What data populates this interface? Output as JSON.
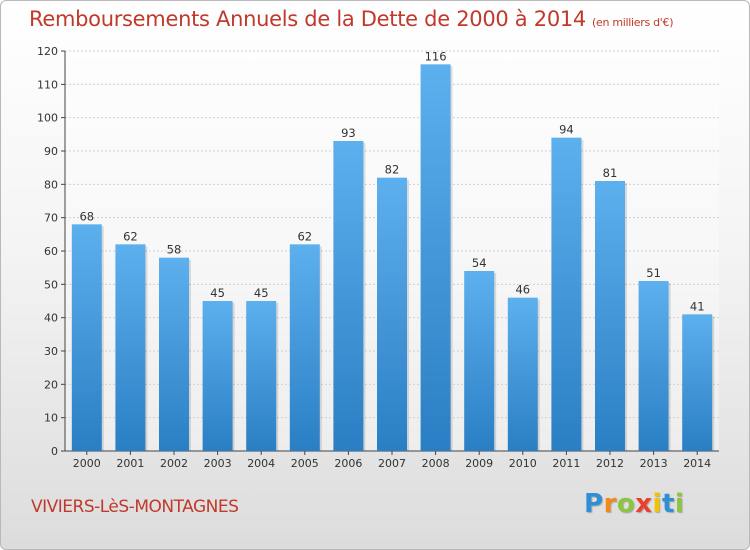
{
  "chart_data": {
    "type": "bar",
    "title": "Remboursements Annuels de la Dette de 2000 à 2014",
    "subtitle": "(en milliers d'€)",
    "xlabel": "",
    "ylabel": "",
    "categories": [
      "2000",
      "2001",
      "2002",
      "2003",
      "2004",
      "2005",
      "2006",
      "2007",
      "2008",
      "2009",
      "2010",
      "2011",
      "2012",
      "2013",
      "2014"
    ],
    "values": [
      68,
      62,
      58,
      45,
      45,
      62,
      93,
      82,
      116,
      54,
      46,
      94,
      81,
      51,
      41
    ],
    "ylim": [
      0,
      120
    ],
    "yticks": [
      0,
      10,
      20,
      30,
      40,
      50,
      60,
      70,
      80,
      90,
      100,
      110,
      120
    ],
    "grid": true,
    "bar_color": "#4a9fe0"
  },
  "footer": {
    "commune": "VIVIERS-LèS-MONTAGNES",
    "logo_letters": [
      {
        "char": "P",
        "color": "#2e8fd6"
      },
      {
        "char": "r",
        "color": "#f08a1c"
      },
      {
        "char": "o",
        "color": "#8cc63f"
      },
      {
        "char": "x",
        "color": "#e8402a"
      },
      {
        "char": "i",
        "color": "#f2c400"
      },
      {
        "char": "t",
        "color": "#2e8fd6"
      },
      {
        "char": "i",
        "color": "#8cc63f"
      }
    ]
  }
}
